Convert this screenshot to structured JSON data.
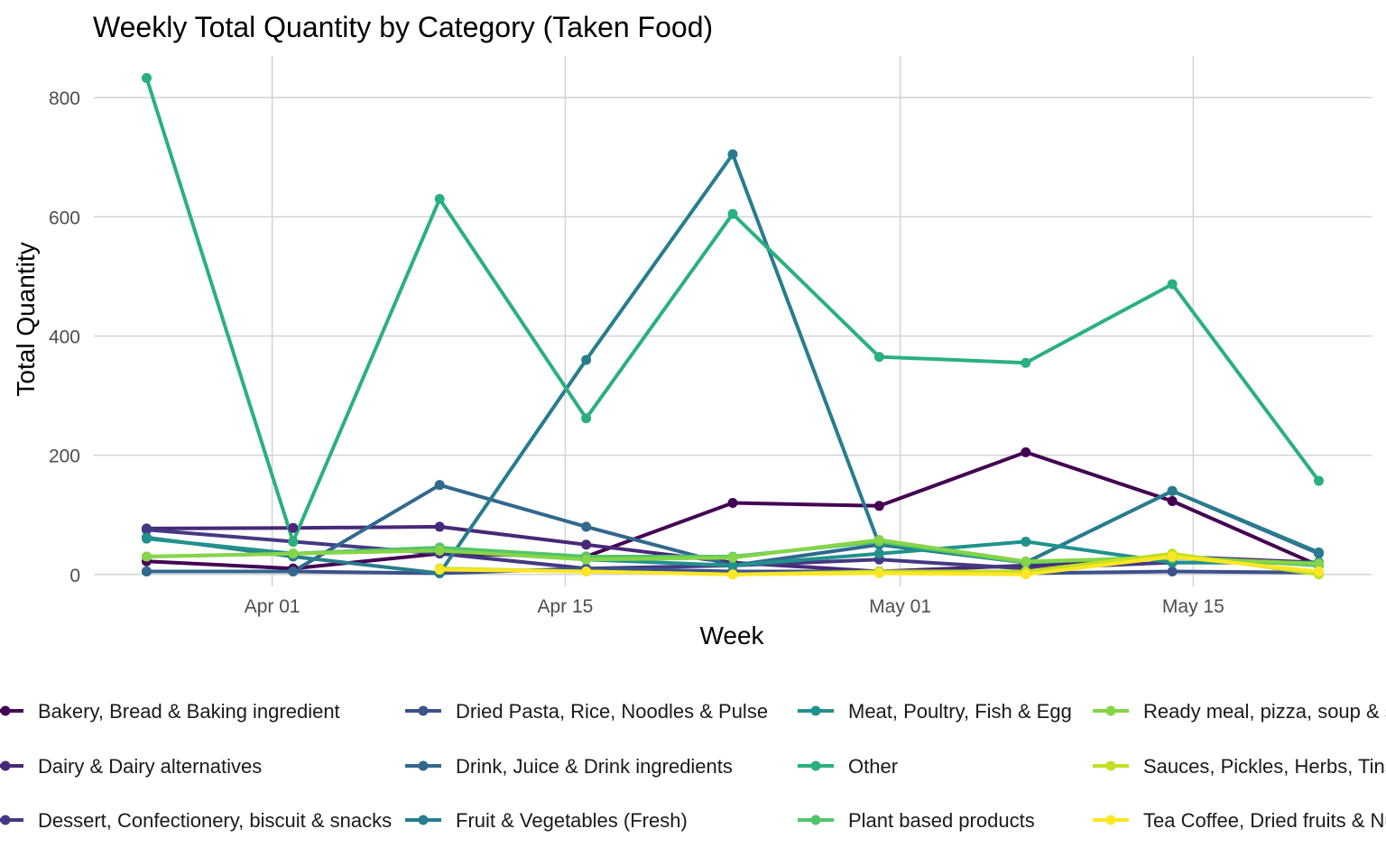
{
  "chart_data": {
    "type": "line",
    "title": "Weekly Total Quantity by Category (Taken Food)",
    "xlabel": "Week",
    "ylabel": "Total Quantity",
    "x": [
      "2023-03-26",
      "2023-04-02",
      "2023-04-09",
      "2023-04-16",
      "2023-04-23",
      "2023-04-30",
      "2023-05-07",
      "2023-05-14",
      "2023-05-21"
    ],
    "x_ticks": [
      {
        "date": "2023-04-01",
        "label": "Apr 01"
      },
      {
        "date": "2023-04-15",
        "label": "Apr 15"
      },
      {
        "date": "2023-05-01",
        "label": "May 01"
      },
      {
        "date": "2023-05-15",
        "label": "May 15"
      }
    ],
    "y_ticks": [
      0,
      200,
      400,
      600,
      800
    ],
    "ylim": [
      -20,
      870
    ],
    "grid": true,
    "legend_position": "bottom",
    "series": [
      {
        "name": "Bakery, Bread & Baking ingredient",
        "color": "#440154",
        "values": [
          22,
          10,
          35,
          30,
          120,
          115,
          205,
          123,
          15
        ]
      },
      {
        "name": "Dairy & Dairy alternatives",
        "color": "#482878",
        "values": [
          77,
          78,
          80,
          50,
          20,
          5,
          15,
          30,
          20
        ]
      },
      {
        "name": "Dessert, Confectionery, biscuit & snacks",
        "color": "#443983",
        "values": [
          75,
          55,
          35,
          10,
          15,
          25,
          10,
          20,
          20
        ]
      },
      {
        "name": "Dried Pasta, Rice, Noodles & Pulse",
        "color": "#3b528b",
        "values": [
          5,
          5,
          2,
          10,
          5,
          5,
          2,
          5,
          3
        ]
      },
      {
        "name": "Drink, Juice & Drink ingredients",
        "color": "#31688e",
        "values": [
          5,
          5,
          150,
          80,
          15,
          50,
          20,
          140,
          35
        ]
      },
      {
        "name": "Fruit & Vegetables (Fresh)",
        "color": "#287c8e",
        "values": [
          62,
          30,
          2,
          360,
          705,
          50,
          20,
          140,
          37
        ]
      },
      {
        "name": "Meat, Poultry, Fish & Egg",
        "color": "#21918c",
        "values": [
          60,
          35,
          45,
          25,
          15,
          35,
          55,
          20,
          20
        ]
      },
      {
        "name": "Other",
        "color": "#2ab07f",
        "values": [
          833,
          55,
          630,
          262,
          605,
          365,
          355,
          487,
          157
        ]
      },
      {
        "name": "Plant based products",
        "color": "#52c569",
        "values": [
          30,
          35,
          45,
          30,
          30,
          55,
          20,
          30,
          15
        ]
      },
      {
        "name": "Ready meal, pizza, soup & sandwich",
        "color": "#86d549",
        "values": [
          30,
          35,
          40,
          25,
          28,
          58,
          22,
          28,
          18
        ]
      },
      {
        "name": "Sauces, Pickles, Herbs, Tins & Jars",
        "color": "#c2df23",
        "values": [
          null,
          null,
          10,
          5,
          0,
          5,
          5,
          35,
          0
        ]
      },
      {
        "name": "Tea Coffee, Dried fruits & Nuts",
        "color": "#fde725",
        "values": [
          null,
          null,
          8,
          5,
          0,
          2,
          0,
          30,
          5
        ]
      }
    ]
  }
}
